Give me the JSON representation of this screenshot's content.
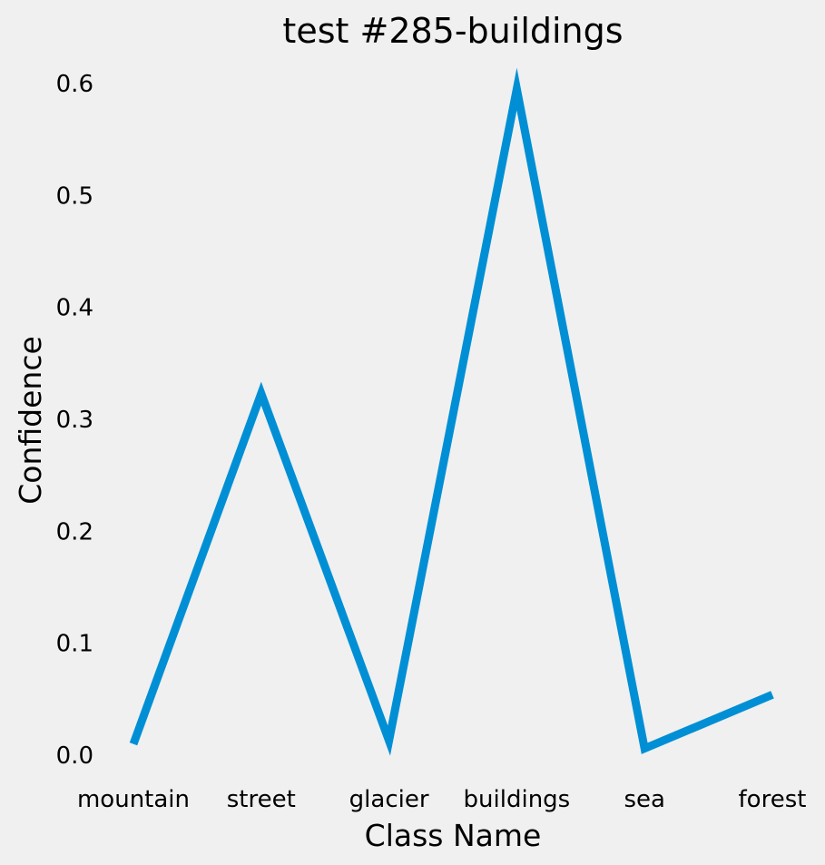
{
  "chart_data": {
    "type": "line",
    "title": "test #285-buildings",
    "xlabel": "Class Name",
    "ylabel": "Confidence",
    "categories": [
      "mountain",
      "street",
      "glacier",
      "buildings",
      "sea",
      "forest"
    ],
    "series": [
      {
        "values": [
          0.01,
          0.323,
          0.013,
          0.595,
          0.006,
          0.054
        ],
        "color": "#008fd5"
      }
    ],
    "yticks": [
      "0.0",
      "0.1",
      "0.2",
      "0.3",
      "0.4",
      "0.5",
      "0.6"
    ],
    "ylim": [
      0.0,
      0.6
    ],
    "grid": false,
    "background": "#f0f0f0"
  }
}
